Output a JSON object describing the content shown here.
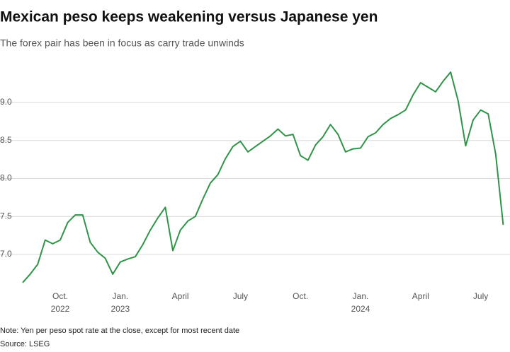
{
  "chart_data": {
    "type": "line",
    "title": "Mexican peso keeps weakening versus Japanese yen",
    "subtitle": "The forex pair has been in focus as carry trade unwinds",
    "note": "Note: Yen per peso spot rate at the close, except for most recent date",
    "source": "Source: LSEG",
    "categories": [
      null,
      null,
      null,
      null,
      null,
      "Oct.\n2022",
      null,
      null,
      null,
      null,
      null,
      null,
      null,
      "Jan.\n2023",
      null,
      null,
      null,
      null,
      null,
      null,
      null,
      "April",
      null,
      null,
      null,
      null,
      null,
      null,
      null,
      "July",
      null,
      null,
      null,
      null,
      null,
      null,
      null,
      "Oct.",
      null,
      null,
      null,
      null,
      null,
      null,
      null,
      "Jan.\n2024",
      null,
      null,
      null,
      null,
      null,
      null,
      null,
      "April",
      null,
      null,
      null,
      null,
      null,
      null,
      null,
      "July",
      null,
      null,
      null
    ],
    "values": [
      6.63,
      6.74,
      6.87,
      7.19,
      7.14,
      7.19,
      7.42,
      7.52,
      7.52,
      7.16,
      7.03,
      6.95,
      6.74,
      6.9,
      6.94,
      6.97,
      7.13,
      7.32,
      7.48,
      7.62,
      7.05,
      7.32,
      7.44,
      7.5,
      7.73,
      7.94,
      8.05,
      8.26,
      8.42,
      8.49,
      8.35,
      8.42,
      8.49,
      8.56,
      8.65,
      8.56,
      8.58,
      8.3,
      8.24,
      8.44,
      8.55,
      8.71,
      8.58,
      8.35,
      8.39,
      8.4,
      8.55,
      8.6,
      8.71,
      8.79,
      8.84,
      8.9,
      9.1,
      9.26,
      9.2,
      9.14,
      9.28,
      9.4,
      9.02,
      8.43,
      8.77,
      8.9,
      8.85,
      8.32,
      7.39
    ],
    "color": "#2f9447",
    "ylim": [
      6.6,
      9.45
    ],
    "yticks": [
      {
        "value": 7,
        "label": "7.0"
      },
      {
        "value": 7.5,
        "label": "7.5"
      },
      {
        "value": 8,
        "label": "8.0"
      },
      {
        "value": 8.5,
        "label": "8.5"
      },
      {
        "value": 9,
        "label": "9.0"
      }
    ],
    "grid": true
  }
}
